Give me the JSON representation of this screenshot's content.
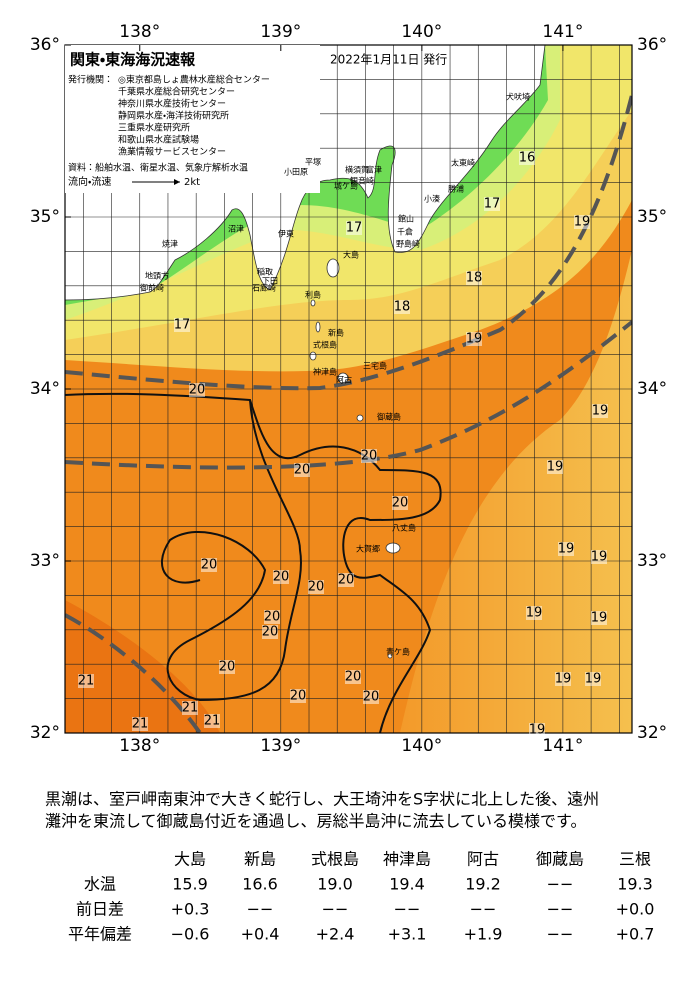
{
  "map": {
    "title": "関東・東海海況速報",
    "date": "2022年1月11日 発行",
    "issuer_label": "発行機関：",
    "issuers": [
      "◎東京都島しょ農林水産総合センター",
      "千葉県水産総合研究センター",
      "神奈川県水産技術センター",
      "静岡県水産・海洋技術研究所",
      "三重県水産研究所",
      "和歌山県水産試験場",
      "漁業情報サービスセンター"
    ],
    "sources": "資料：船舶水温、衛星水温、気象庁解析水温",
    "flow_legend": {
      "label": "流向・流速",
      "speed": "2kt"
    },
    "lon_ticks": [
      {
        "value": 138,
        "label": "138°"
      },
      {
        "value": 139,
        "label": "139°"
      },
      {
        "value": 140,
        "label": "140°"
      },
      {
        "value": 141,
        "label": "141°"
      }
    ],
    "lat_ticks": [
      {
        "value": 36,
        "label": "36°"
      },
      {
        "value": 35,
        "label": "35°"
      },
      {
        "value": 34,
        "label": "34°"
      },
      {
        "value": 33,
        "label": "33°"
      },
      {
        "value": 32,
        "label": "32°"
      }
    ],
    "lon_range": [
      137.47,
      141.49
    ],
    "lat_range": [
      32,
      36
    ],
    "isotherm_labels": [
      16,
      17,
      17,
      18,
      18,
      17,
      19,
      19,
      20,
      20,
      20,
      20,
      19,
      19,
      20,
      20,
      20,
      20,
      19,
      19,
      20,
      20,
      19,
      19,
      20,
      20,
      20,
      20,
      19,
      19,
      21,
      21,
      21,
      21,
      19
    ],
    "place_names": [
      "犬吠埼",
      "太東崎",
      "勝浦",
      "小湊",
      "館山",
      "千倉",
      "野島崎",
      "平塚",
      "横須賀",
      "観音崎",
      "富津",
      "城ケ島",
      "小田原",
      "伊東",
      "稲取",
      "石廊崎",
      "下田",
      "沼津",
      "焼津",
      "地頭方",
      "御前崎",
      "大島",
      "利島",
      "新島",
      "式根島",
      "神津島",
      "阿古",
      "三宅島",
      "御蔵島",
      "八丈島",
      "大賀郷",
      "青ケ島"
    ]
  },
  "summary": [
    "黒潮は、室戸岬南東沖で大きく蛇行し、大王埼沖をS字状に北上した後、遠州",
    "灘沖を東流して御蔵島付近を通過し、房総半島沖に流去している模様です。"
  ],
  "table": {
    "columns": [
      "大島",
      "新島",
      "式根島",
      "神津島",
      "阿古",
      "御蔵島",
      "三根"
    ],
    "rows": [
      {
        "label": "水温",
        "cells": [
          "15.9",
          "16.6",
          "19.0",
          "19.4",
          "19.2",
          "−−",
          "19.3"
        ]
      },
      {
        "label": "前日差",
        "cells": [
          "+0.3",
          "−−",
          "−−",
          "−−",
          "−−",
          "−−",
          "+0.0"
        ]
      },
      {
        "label": "平年偏差",
        "cells": [
          "−0.6",
          "+0.4",
          "+2.4",
          "+3.1",
          "+1.9",
          "−−",
          "+0.7"
        ]
      }
    ]
  }
}
